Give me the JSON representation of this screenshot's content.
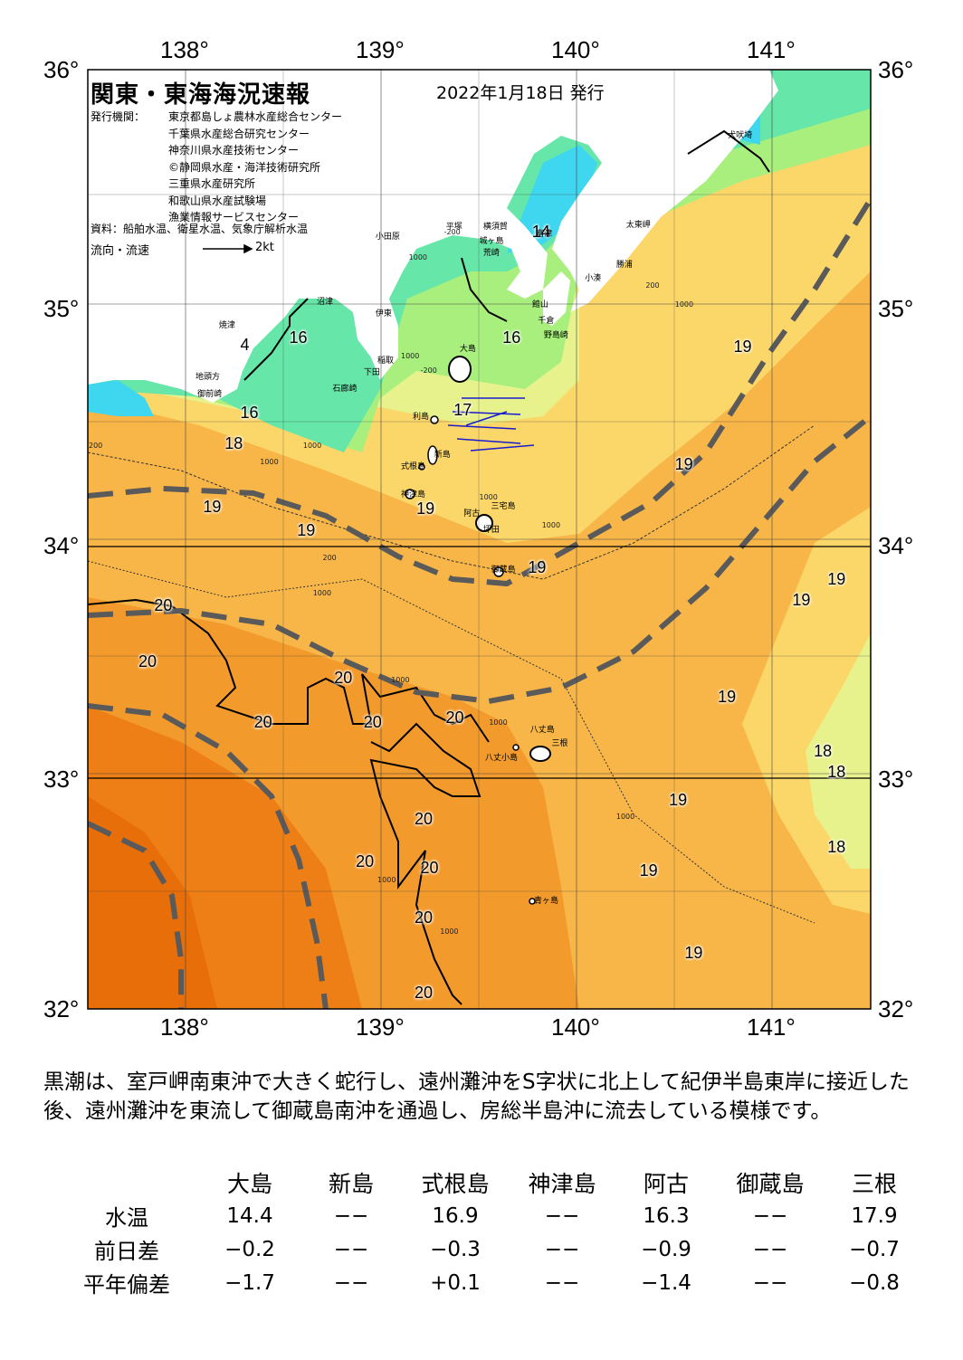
{
  "map": {
    "title": "関東・東海海況速報",
    "date": "2022年1月18日 発行",
    "issuer_label": "発行機関：",
    "issuers": [
      "東京都島しょ農林水産総合センター",
      "千葉県水産総合研究センター",
      "神奈川県水産技術センター",
      "©静岡県水産・海洋技術研究所",
      "三重県水産研究所",
      "和歌山県水産試験場",
      "漁業情報サービスセンター"
    ],
    "sources": "資料：船舶水温、衛星水温、気象庁解析水温",
    "flow_legend": "流向・流速",
    "flow_unit": "2kt",
    "lon_labels": [
      "138°",
      "139°",
      "140°",
      "141°"
    ],
    "lat_labels": [
      "36°",
      "35°",
      "34°",
      "33°",
      "32°"
    ],
    "temperature_labels": [
      {
        "text": "14",
        "lon": 139.82,
        "lat": 35.31
      },
      {
        "text": "4",
        "lon": 138.33,
        "lat": 34.83
      },
      {
        "text": "16",
        "lon": 138.58,
        "lat": 34.86
      },
      {
        "text": "16",
        "lon": 139.67,
        "lat": 34.86
      },
      {
        "text": "16",
        "lon": 138.33,
        "lat": 34.54
      },
      {
        "text": "17",
        "lon": 139.42,
        "lat": 34.55
      },
      {
        "text": "18",
        "lon": 138.25,
        "lat": 34.41
      },
      {
        "text": "19",
        "lon": 140.85,
        "lat": 34.82
      },
      {
        "text": "19",
        "lon": 140.55,
        "lat": 34.32
      },
      {
        "text": "19",
        "lon": 138.14,
        "lat": 34.14
      },
      {
        "text": "19",
        "lon": 138.62,
        "lat": 34.04
      },
      {
        "text": "19",
        "lon": 139.23,
        "lat": 34.13
      },
      {
        "text": "19",
        "lon": 139.8,
        "lat": 33.88
      },
      {
        "text": "19",
        "lon": 141.33,
        "lat": 33.83
      },
      {
        "text": "19",
        "lon": 141.15,
        "lat": 33.74
      },
      {
        "text": "20",
        "lon": 137.89,
        "lat": 33.72
      },
      {
        "text": "20",
        "lon": 137.81,
        "lat": 33.48
      },
      {
        "text": "20",
        "lon": 138.81,
        "lat": 33.41
      },
      {
        "text": "20",
        "lon": 138.4,
        "lat": 33.22
      },
      {
        "text": "20",
        "lon": 138.96,
        "lat": 33.22
      },
      {
        "text": "20",
        "lon": 139.38,
        "lat": 33.24
      },
      {
        "text": "19",
        "lon": 140.77,
        "lat": 33.33
      },
      {
        "text": "18",
        "lon": 141.26,
        "lat": 33.1
      },
      {
        "text": "18",
        "lon": 141.33,
        "lat": 33.01
      },
      {
        "text": "19",
        "lon": 140.52,
        "lat": 32.89
      },
      {
        "text": "18",
        "lon": 141.33,
        "lat": 32.69
      },
      {
        "text": "20",
        "lon": 139.22,
        "lat": 32.81
      },
      {
        "text": "20",
        "lon": 138.92,
        "lat": 32.63
      },
      {
        "text": "20",
        "lon": 139.25,
        "lat": 32.6
      },
      {
        "text": "19",
        "lon": 140.37,
        "lat": 32.59
      },
      {
        "text": "20",
        "lon": 139.22,
        "lat": 32.39
      },
      {
        "text": "19",
        "lon": 140.6,
        "lat": 32.24
      },
      {
        "text": "20",
        "lon": 139.22,
        "lat": 32.07
      }
    ],
    "place_labels": [
      {
        "text": "犬吠埼",
        "lon": 140.77,
        "lat": 35.73
      },
      {
        "text": "太東岬",
        "lon": 140.25,
        "lat": 35.35
      },
      {
        "text": "平塚",
        "lon": 139.33,
        "lat": 35.34
      },
      {
        "text": "横須賀",
        "lon": 139.52,
        "lat": 35.34
      },
      {
        "text": "富津",
        "lon": 139.79,
        "lat": 35.31
      },
      {
        "text": "小田原",
        "lon": 138.97,
        "lat": 35.3
      },
      {
        "text": "城ヶ島",
        "lon": 139.5,
        "lat": 35.28
      },
      {
        "text": "荒崎",
        "lon": 139.52,
        "lat": 35.23
      },
      {
        "text": "小湊",
        "lon": 140.04,
        "lat": 35.12
      },
      {
        "text": "勝浦",
        "lon": 140.2,
        "lat": 35.18
      },
      {
        "text": "沼津",
        "lon": 138.67,
        "lat": 35.02
      },
      {
        "text": "館山",
        "lon": 139.77,
        "lat": 35.01
      },
      {
        "text": "伊東",
        "lon": 138.97,
        "lat": 34.97
      },
      {
        "text": "千倉",
        "lon": 139.8,
        "lat": 34.94
      },
      {
        "text": "焼津",
        "lon": 138.17,
        "lat": 34.92
      },
      {
        "text": "野島崎",
        "lon": 139.83,
        "lat": 34.88
      },
      {
        "text": "大島",
        "lon": 139.4,
        "lat": 34.82
      },
      {
        "text": "稲取",
        "lon": 138.98,
        "lat": 34.77
      },
      {
        "text": "下田",
        "lon": 138.91,
        "lat": 34.72
      },
      {
        "text": "地頭方",
        "lon": 138.05,
        "lat": 34.7
      },
      {
        "text": "石廊崎",
        "lon": 138.75,
        "lat": 34.65
      },
      {
        "text": "御前崎",
        "lon": 138.06,
        "lat": 34.63
      },
      {
        "text": "利島",
        "lon": 139.16,
        "lat": 34.53
      },
      {
        "text": "新島",
        "lon": 139.27,
        "lat": 34.37
      },
      {
        "text": "式根島",
        "lon": 139.1,
        "lat": 34.32
      },
      {
        "text": "神津島",
        "lon": 139.1,
        "lat": 34.2
      },
      {
        "text": "阿古",
        "lon": 139.42,
        "lat": 34.12
      },
      {
        "text": "三宅島",
        "lon": 139.56,
        "lat": 34.15
      },
      {
        "text": "坪田",
        "lon": 139.52,
        "lat": 34.05
      },
      {
        "text": "御蔵島",
        "lon": 139.56,
        "lat": 33.88
      },
      {
        "text": "八丈島",
        "lon": 139.76,
        "lat": 33.2
      },
      {
        "text": "三根",
        "lon": 139.87,
        "lat": 33.14
      },
      {
        "text": "八丈小島",
        "lon": 139.53,
        "lat": 33.08
      },
      {
        "text": "青ヶ島",
        "lon": 139.78,
        "lat": 32.47
      }
    ],
    "depth_labels": [
      {
        "text": "-200",
        "lon": 139.32,
        "lat": 35.31
      },
      {
        "text": "1000",
        "lon": 139.14,
        "lat": 35.2
      },
      {
        "text": "1000",
        "lon": 139.1,
        "lat": 34.78
      },
      {
        "text": "-200",
        "lon": 139.2,
        "lat": 34.72
      },
      {
        "text": "200",
        "lon": 140.35,
        "lat": 35.08
      },
      {
        "text": "1000",
        "lon": 140.5,
        "lat": 35.0
      },
      {
        "text": "1000",
        "lon": 138.6,
        "lat": 34.4
      },
      {
        "text": "200",
        "lon": 137.5,
        "lat": 34.4
      },
      {
        "text": "1000",
        "lon": 138.38,
        "lat": 34.33
      },
      {
        "text": "200",
        "lon": 138.7,
        "lat": 33.92
      },
      {
        "text": "1000",
        "lon": 138.65,
        "lat": 33.77
      },
      {
        "text": "1000",
        "lon": 139.5,
        "lat": 34.18
      },
      {
        "text": "1000",
        "lon": 139.82,
        "lat": 34.06
      },
      {
        "text": "1000",
        "lon": 139.05,
        "lat": 33.4
      },
      {
        "text": "1000",
        "lon": 139.55,
        "lat": 33.22
      },
      {
        "text": "1000",
        "lon": 140.2,
        "lat": 32.82
      },
      {
        "text": "1000",
        "lon": 138.98,
        "lat": 32.55
      },
      {
        "text": "1000",
        "lon": 139.3,
        "lat": 32.33
      }
    ]
  },
  "summary": "黒潮は、室戸岬南東沖で大きく蛇行し、遠州灘沖をS字状に北上して紀伊半島東岸に接近した後、遠州灘沖を東流して御蔵島南沖を通過し、房総半島沖に流去している模様です。",
  "observations": {
    "stations": [
      "大島",
      "新島",
      "式根島",
      "神津島",
      "阿古",
      "御蔵島",
      "三根"
    ],
    "rows": [
      {
        "label": "水温",
        "values": [
          "14.4",
          "−−",
          "16.9",
          "−−",
          "16.3",
          "−−",
          "17.9"
        ]
      },
      {
        "label": "前日差",
        "values": [
          "−0.2",
          "−−",
          "−0.3",
          "−−",
          "−0.9",
          "−−",
          "−0.7"
        ]
      },
      {
        "label": "平年偏差",
        "values": [
          "−1.7",
          "−−",
          "+0.1",
          "−−",
          "−1.4",
          "−−",
          "−0.8"
        ]
      }
    ]
  },
  "colors": {
    "land": "#ffffff",
    "cold": "#3fd6f0",
    "cool": "#66e6a8",
    "mild": "#a8ef7e",
    "lemon": "#e8f28c",
    "warm1": "#fbd76a",
    "warm2": "#f8b648",
    "warm3": "#f39a2c",
    "warm4": "#ee7e16",
    "kuroshio": "#5a5a5a"
  }
}
